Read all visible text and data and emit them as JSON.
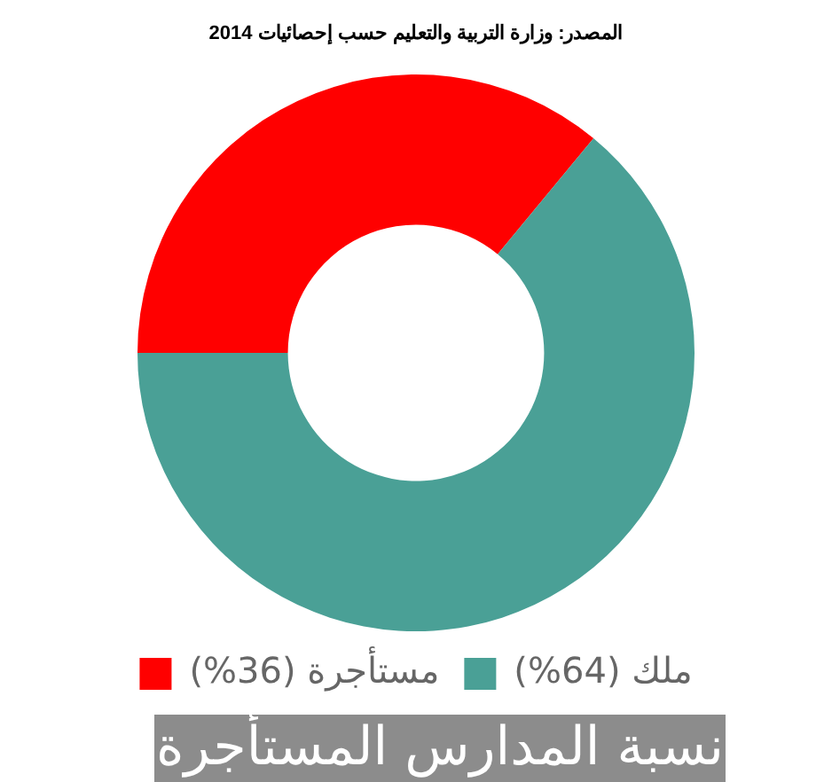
{
  "chart_data": {
    "type": "donut",
    "title": "نسبة المدارس المستأجرة",
    "annotations": [
      "المصدر: وزارة التربية والتعليم حسب إحصائيات 2014"
    ],
    "categories": [
      "مستأجرة (36%)",
      "ملك (64%)"
    ],
    "values": [
      36,
      64
    ],
    "colors": [
      "#ff0000",
      "#4aa096"
    ],
    "legend": "bottom"
  }
}
